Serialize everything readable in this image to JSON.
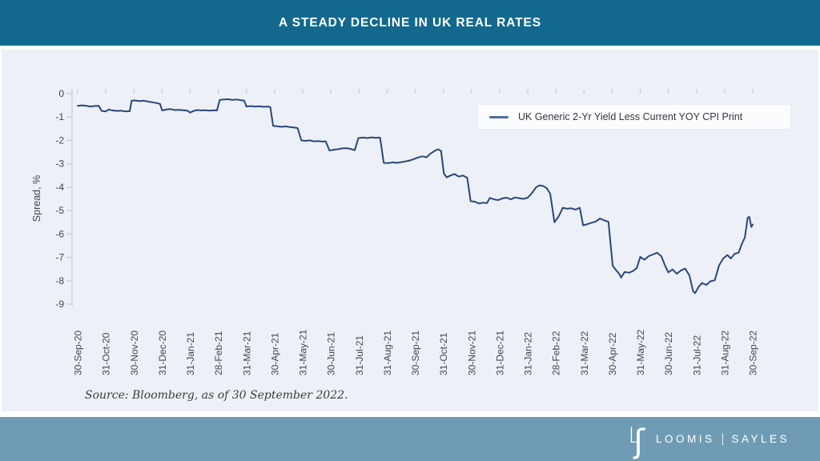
{
  "header": {
    "title": "A STEADY DECLINE IN UK REAL RATES"
  },
  "chart_data": {
    "type": "line",
    "title": "A STEADY DECLINE IN UK REAL RATES",
    "xlabel": "",
    "ylabel": "Spread, %",
    "ylim": [
      -9,
      0
    ],
    "grid": false,
    "legend_position": "upper right",
    "y_ticks": [
      0,
      -1,
      -2,
      -3,
      -4,
      -5,
      -6,
      -7,
      -8,
      -9
    ],
    "x_tick_labels": [
      "30-Sep-20",
      "31-Oct-20",
      "30-Nov-20",
      "31-Dec-20",
      "31-Jan-21",
      "28-Feb-21",
      "31-Mar-21",
      "30-Apr-21",
      "31-May-21",
      "30-Jun-21",
      "31-Jul-21",
      "31-Aug-21",
      "30-Sep-21",
      "31-Oct-21",
      "30-Nov-21",
      "31-Dec-21",
      "31-Jan-22",
      "28-Feb-22",
      "31-Mar-22",
      "30-Apr-22",
      "31-May-22",
      "30-Jun-22",
      "31-Jul-22",
      "31-Aug-22",
      "30-Sep-22"
    ],
    "series": [
      {
        "name": "UK Generic 2-Yr Yield Less Current YOY CPI Print",
        "color": "#2a4679",
        "points": [
          [
            0.0,
            -0.52
          ],
          [
            0.15,
            -0.5
          ],
          [
            0.3,
            -0.52
          ],
          [
            0.45,
            -0.55
          ],
          [
            0.6,
            -0.53
          ],
          [
            0.75,
            -0.52
          ],
          [
            0.85,
            -0.74
          ],
          [
            1.0,
            -0.76
          ],
          [
            1.1,
            -0.68
          ],
          [
            1.25,
            -0.72
          ],
          [
            1.4,
            -0.74
          ],
          [
            1.55,
            -0.73
          ],
          [
            1.7,
            -0.76
          ],
          [
            1.85,
            -0.75
          ],
          [
            1.92,
            -0.3
          ],
          [
            2.05,
            -0.29
          ],
          [
            2.2,
            -0.32
          ],
          [
            2.35,
            -0.3
          ],
          [
            2.5,
            -0.34
          ],
          [
            2.65,
            -0.37
          ],
          [
            2.8,
            -0.4
          ],
          [
            2.93,
            -0.44
          ],
          [
            3.0,
            -0.72
          ],
          [
            3.15,
            -0.68
          ],
          [
            3.3,
            -0.66
          ],
          [
            3.45,
            -0.7
          ],
          [
            3.6,
            -0.69
          ],
          [
            3.75,
            -0.71
          ],
          [
            3.9,
            -0.73
          ],
          [
            4.0,
            -0.81
          ],
          [
            4.12,
            -0.74
          ],
          [
            4.25,
            -0.7
          ],
          [
            4.4,
            -0.72
          ],
          [
            4.55,
            -0.71
          ],
          [
            4.7,
            -0.73
          ],
          [
            4.85,
            -0.71
          ],
          [
            4.95,
            -0.72
          ],
          [
            5.05,
            -0.27
          ],
          [
            5.2,
            -0.25
          ],
          [
            5.35,
            -0.24
          ],
          [
            5.5,
            -0.27
          ],
          [
            5.65,
            -0.25
          ],
          [
            5.8,
            -0.28
          ],
          [
            5.92,
            -0.3
          ],
          [
            6.0,
            -0.55
          ],
          [
            6.15,
            -0.53
          ],
          [
            6.3,
            -0.55
          ],
          [
            6.45,
            -0.54
          ],
          [
            6.6,
            -0.56
          ],
          [
            6.75,
            -0.55
          ],
          [
            6.85,
            -0.58
          ],
          [
            6.95,
            -1.38
          ],
          [
            7.1,
            -1.4
          ],
          [
            7.25,
            -1.42
          ],
          [
            7.4,
            -1.4
          ],
          [
            7.55,
            -1.43
          ],
          [
            7.7,
            -1.45
          ],
          [
            7.82,
            -1.47
          ],
          [
            7.95,
            -2.0
          ],
          [
            8.1,
            -2.02
          ],
          [
            8.25,
            -2.0
          ],
          [
            8.4,
            -2.04
          ],
          [
            8.55,
            -2.03
          ],
          [
            8.7,
            -2.05
          ],
          [
            8.82,
            -2.04
          ],
          [
            8.95,
            -2.43
          ],
          [
            9.1,
            -2.4
          ],
          [
            9.25,
            -2.38
          ],
          [
            9.4,
            -2.34
          ],
          [
            9.55,
            -2.33
          ],
          [
            9.7,
            -2.36
          ],
          [
            9.85,
            -2.42
          ],
          [
            9.98,
            -1.9
          ],
          [
            10.15,
            -1.88
          ],
          [
            10.3,
            -1.9
          ],
          [
            10.45,
            -1.87
          ],
          [
            10.6,
            -1.89
          ],
          [
            10.75,
            -1.88
          ],
          [
            10.88,
            -2.96
          ],
          [
            11.05,
            -2.97
          ],
          [
            11.2,
            -2.94
          ],
          [
            11.35,
            -2.96
          ],
          [
            11.5,
            -2.93
          ],
          [
            11.65,
            -2.9
          ],
          [
            11.8,
            -2.86
          ],
          [
            11.95,
            -2.8
          ],
          [
            12.1,
            -2.73
          ],
          [
            12.25,
            -2.68
          ],
          [
            12.4,
            -2.72
          ],
          [
            12.55,
            -2.56
          ],
          [
            12.7,
            -2.44
          ],
          [
            12.82,
            -2.38
          ],
          [
            12.92,
            -2.45
          ],
          [
            13.02,
            -3.42
          ],
          [
            13.12,
            -3.58
          ],
          [
            13.25,
            -3.5
          ],
          [
            13.4,
            -3.44
          ],
          [
            13.55,
            -3.55
          ],
          [
            13.7,
            -3.5
          ],
          [
            13.85,
            -3.6
          ],
          [
            13.97,
            -4.6
          ],
          [
            14.12,
            -4.62
          ],
          [
            14.27,
            -4.7
          ],
          [
            14.42,
            -4.66
          ],
          [
            14.55,
            -4.68
          ],
          [
            14.65,
            -4.46
          ],
          [
            14.8,
            -4.52
          ],
          [
            14.95,
            -4.55
          ],
          [
            15.1,
            -4.48
          ],
          [
            15.25,
            -4.45
          ],
          [
            15.4,
            -4.52
          ],
          [
            15.55,
            -4.44
          ],
          [
            15.7,
            -4.47
          ],
          [
            15.85,
            -4.5
          ],
          [
            16.0,
            -4.45
          ],
          [
            16.15,
            -4.25
          ],
          [
            16.3,
            -4.0
          ],
          [
            16.42,
            -3.92
          ],
          [
            16.55,
            -3.95
          ],
          [
            16.68,
            -4.05
          ],
          [
            16.8,
            -4.28
          ],
          [
            16.95,
            -5.5
          ],
          [
            17.1,
            -5.25
          ],
          [
            17.25,
            -4.88
          ],
          [
            17.4,
            -4.92
          ],
          [
            17.55,
            -4.9
          ],
          [
            17.7,
            -4.96
          ],
          [
            17.85,
            -4.88
          ],
          [
            17.97,
            -5.63
          ],
          [
            18.12,
            -5.58
          ],
          [
            18.27,
            -5.52
          ],
          [
            18.42,
            -5.47
          ],
          [
            18.57,
            -5.34
          ],
          [
            18.72,
            -5.42
          ],
          [
            18.87,
            -5.48
          ],
          [
            19.02,
            -7.35
          ],
          [
            19.12,
            -7.52
          ],
          [
            19.25,
            -7.7
          ],
          [
            19.32,
            -7.86
          ],
          [
            19.45,
            -7.62
          ],
          [
            19.6,
            -7.66
          ],
          [
            19.75,
            -7.58
          ],
          [
            19.88,
            -7.45
          ],
          [
            20.0,
            -6.98
          ],
          [
            20.15,
            -7.1
          ],
          [
            20.3,
            -6.95
          ],
          [
            20.45,
            -6.88
          ],
          [
            20.6,
            -6.8
          ],
          [
            20.75,
            -6.95
          ],
          [
            20.9,
            -7.4
          ],
          [
            21.0,
            -7.64
          ],
          [
            21.15,
            -7.52
          ],
          [
            21.3,
            -7.7
          ],
          [
            21.45,
            -7.56
          ],
          [
            21.6,
            -7.48
          ],
          [
            21.75,
            -7.78
          ],
          [
            21.88,
            -8.45
          ],
          [
            21.95,
            -8.53
          ],
          [
            22.08,
            -8.25
          ],
          [
            22.2,
            -8.1
          ],
          [
            22.35,
            -8.18
          ],
          [
            22.5,
            -8.02
          ],
          [
            22.65,
            -7.98
          ],
          [
            22.8,
            -7.35
          ],
          [
            22.95,
            -7.05
          ],
          [
            23.1,
            -6.9
          ],
          [
            23.22,
            -7.05
          ],
          [
            23.35,
            -6.85
          ],
          [
            23.5,
            -6.8
          ],
          [
            23.62,
            -6.4
          ],
          [
            23.72,
            -6.15
          ],
          [
            23.82,
            -5.3
          ],
          [
            23.88,
            -5.27
          ],
          [
            23.95,
            -5.7
          ],
          [
            24.0,
            -5.6
          ]
        ]
      }
    ]
  },
  "legend": {
    "label": "UK Generic 2-Yr Yield Less Current YOY CPI Print"
  },
  "source_note": "Source: Bloomberg, as of 30 September 2022.",
  "footer": {
    "logo_l": "L",
    "logo_s": "ʃ",
    "brand_first": "LOOMIS",
    "brand_second": "SAYLES"
  },
  "colors": {
    "header_bg": "#12698d",
    "footer_bg": "#6f9cb4",
    "panel_bg": "#edf1f7",
    "line": "#2a4679",
    "legend_dash": "#4d6d9e",
    "axis": "#c7cbd3",
    "tick_text": "#42464d"
  }
}
